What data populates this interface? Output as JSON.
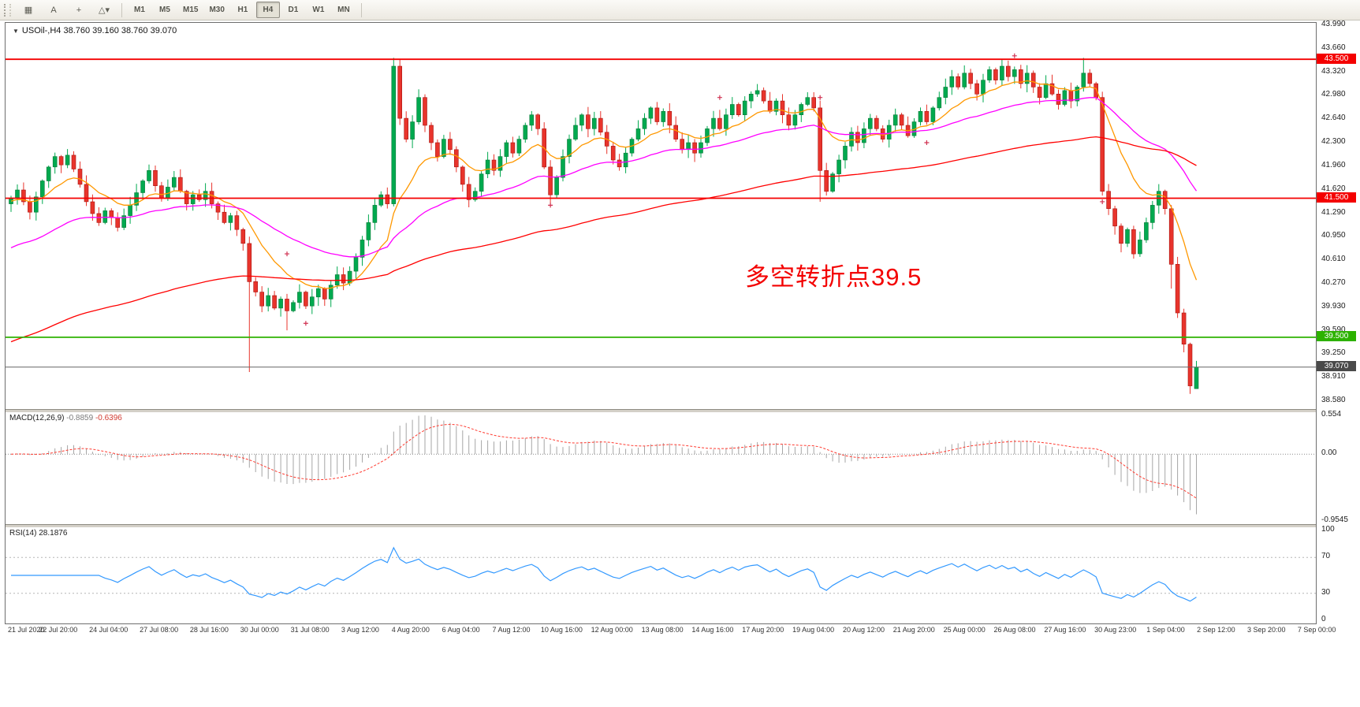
{
  "toolbar": {
    "icons": [
      {
        "name": "chart-window-icon",
        "glyph": "▦"
      },
      {
        "name": "text-annotation-icon",
        "glyph": "A"
      },
      {
        "name": "crosshair-icon",
        "glyph": "+"
      },
      {
        "name": "draw-tools-dropdown-icon",
        "glyph": "△▾"
      }
    ],
    "timeframes": [
      {
        "label": "M1",
        "active": false
      },
      {
        "label": "M5",
        "active": false
      },
      {
        "label": "M15",
        "active": false
      },
      {
        "label": "M30",
        "active": false
      },
      {
        "label": "H1",
        "active": false
      },
      {
        "label": "H4",
        "active": true
      },
      {
        "label": "D1",
        "active": false
      },
      {
        "label": "W1",
        "active": false
      },
      {
        "label": "MN",
        "active": false
      }
    ]
  },
  "chart": {
    "title": "USOil-,H4 38.760 39.160 38.760 39.070",
    "annotation": {
      "text": "多空转折点39.5",
      "color": "#f30000"
    },
    "axis": {
      "max": 43.99,
      "min": 38.58
    },
    "price_axis_labels": [
      "43.990",
      "43.660",
      "43.320",
      "42.980",
      "42.640",
      "42.300",
      "41.960",
      "41.620",
      "41.290",
      "40.950",
      "40.610",
      "40.270",
      "39.930",
      "39.590",
      "39.250",
      "38.910",
      "38.580"
    ],
    "hlines": [
      {
        "value": 43.5,
        "label": "43.500",
        "color": "#f40000"
      },
      {
        "value": 41.5,
        "label": "41.500",
        "color": "#f40000"
      },
      {
        "value": 39.5,
        "label": "39.500",
        "color": "#2db200"
      }
    ],
    "current_price": {
      "value": 39.07,
      "label": "39.070",
      "color": "#4a4a4a"
    },
    "dates": [
      "21 Jul 2020",
      "22 Jul 20:00",
      "24 Jul 04:00",
      "27 Jul 08:00",
      "28 Jul 16:00",
      "30 Jul 00:00",
      "31 Jul 08:00",
      "3 Aug 12:00",
      "4 Aug 20:00",
      "6 Aug 04:00",
      "7 Aug 12:00",
      "10 Aug 16:00",
      "12 Aug 00:00",
      "13 Aug 08:00",
      "14 Aug 16:00",
      "17 Aug 20:00",
      "19 Aug 04:00",
      "20 Aug 12:00",
      "21 Aug 20:00",
      "25 Aug 00:00",
      "26 Aug 08:00",
      "27 Aug 16:00",
      "30 Aug 23:00",
      "1 Sep 04:00",
      "2 Sep 12:00",
      "3 Sep 20:00",
      "7 Sep 00:00"
    ],
    "colors": {
      "bull": "#00a94f",
      "bull_edge": "#0b7a38",
      "bear": "#e8342c",
      "bear_edge": "#a81410",
      "ma_fast": "#ff9800",
      "ma_mid": "#ff00ff",
      "ma_slow": "#ff0000",
      "price_line": "#666666",
      "macd_hist": "#a6a6a6",
      "macd_signal": "#ff3b30",
      "rsi": "#3399ff",
      "level_dotted": "#b5b5b5",
      "marker": "#d03050"
    }
  },
  "chart_data": {
    "type": "candlestick",
    "symbol": "USOil-",
    "period": "H4",
    "ohlc_current": [
      38.76,
      39.16,
      38.76,
      39.07
    ],
    "first_open": 41.42,
    "closes": [
      41.5,
      41.62,
      41.45,
      41.3,
      41.52,
      41.75,
      41.95,
      42.1,
      41.98,
      42.12,
      41.92,
      41.7,
      41.45,
      41.28,
      41.15,
      41.32,
      41.22,
      41.08,
      41.25,
      41.4,
      41.58,
      41.75,
      41.9,
      41.68,
      41.5,
      41.66,
      41.8,
      41.6,
      41.42,
      41.55,
      41.48,
      41.6,
      41.42,
      41.3,
      41.15,
      41.25,
      41.05,
      40.85,
      40.3,
      40.15,
      39.95,
      40.1,
      39.92,
      40.05,
      39.88,
      40.0,
      40.15,
      39.95,
      40.08,
      40.2,
      40.05,
      40.25,
      40.4,
      40.28,
      40.45,
      40.65,
      40.9,
      41.15,
      41.4,
      41.55,
      41.42,
      43.4,
      42.65,
      42.35,
      42.6,
      42.95,
      42.55,
      42.3,
      42.1,
      42.35,
      42.2,
      41.95,
      41.7,
      41.48,
      41.6,
      41.85,
      42.05,
      41.9,
      42.1,
      42.3,
      42.15,
      42.35,
      42.55,
      42.7,
      42.5,
      41.95,
      41.55,
      41.8,
      42.1,
      42.35,
      42.55,
      42.7,
      42.5,
      42.65,
      42.45,
      42.25,
      42.05,
      41.95,
      42.15,
      42.35,
      42.5,
      42.65,
      42.8,
      42.6,
      42.75,
      42.55,
      42.35,
      42.2,
      42.3,
      42.15,
      42.3,
      42.5,
      42.65,
      42.5,
      42.7,
      42.85,
      42.7,
      42.9,
      43.0,
      43.05,
      42.9,
      42.75,
      42.9,
      42.7,
      42.55,
      42.7,
      42.85,
      42.95,
      42.8,
      41.9,
      41.6,
      41.85,
      42.05,
      42.25,
      42.45,
      42.3,
      42.5,
      42.65,
      42.5,
      42.35,
      42.55,
      42.7,
      42.55,
      42.4,
      42.6,
      42.75,
      42.6,
      42.8,
      42.95,
      43.1,
      43.25,
      43.1,
      43.3,
      43.15,
      43.0,
      43.2,
      43.35,
      43.2,
      43.4,
      43.25,
      43.35,
      43.15,
      43.3,
      43.1,
      42.95,
      43.15,
      43.0,
      42.85,
      43.05,
      42.9,
      43.1,
      43.3,
      43.15,
      42.95,
      41.6,
      41.35,
      41.1,
      40.85,
      41.05,
      40.7,
      40.9,
      41.15,
      41.4,
      41.6,
      41.35,
      40.55,
      39.85,
      39.4,
      38.8,
      39.07
    ],
    "special_lows": {
      "38": 39.0,
      "44": 39.6,
      "129": 41.45,
      "185": 40.2
    },
    "special_highs": {
      "61": 43.52,
      "158": 43.5,
      "171": 43.52
    },
    "cross_markers": [
      [
        44,
        40.7
      ],
      [
        47,
        39.7
      ],
      [
        86,
        41.4
      ],
      [
        113,
        42.95
      ],
      [
        129,
        42.95
      ],
      [
        146,
        42.3
      ],
      [
        160,
        43.55
      ],
      [
        174,
        41.45
      ]
    ],
    "overlays": [
      {
        "name": "ma-fast",
        "color_key": "ma_fast",
        "period": 12,
        "seed": 41.45
      },
      {
        "name": "ma-mid",
        "color_key": "ma_mid",
        "period": 40,
        "seed": 40.75
      },
      {
        "name": "ma-slow",
        "color_key": "ma_slow",
        "period": 120,
        "seed": 39.4
      }
    ],
    "indicators": {
      "macd": {
        "name": "MACD(12,26,9)",
        "value_main": "-0.8859",
        "value_signal": "-0.6396",
        "params": [
          12,
          26,
          9
        ],
        "scale_values": [
          0.554,
          0,
          -0.9545
        ],
        "scale_labels": [
          "0.554",
          "0.00",
          "-0.9545"
        ]
      },
      "rsi": {
        "name": "RSI(14)",
        "value": "28.1876",
        "period": 14,
        "levels": [
          70,
          30
        ],
        "scale_values": [
          100,
          70,
          30,
          0
        ],
        "scale_labels": [
          "100",
          "70",
          "30",
          "0"
        ]
      }
    }
  }
}
